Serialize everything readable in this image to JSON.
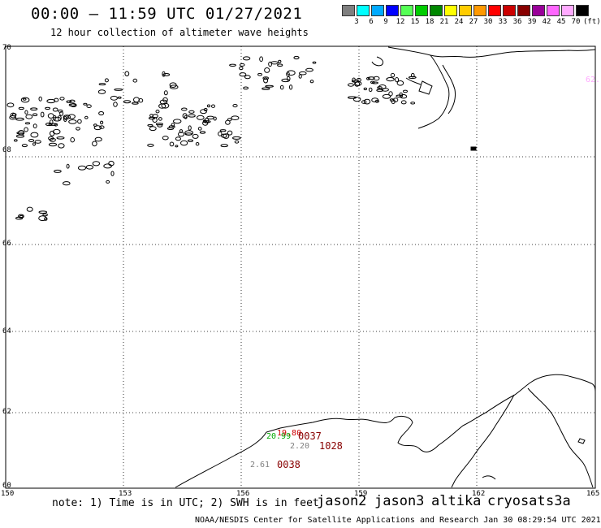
{
  "header": {
    "title": "00:00 – 11:59 UTC 01/27/2021",
    "subtitle": "12 hour collection of altimeter wave heights"
  },
  "legend": {
    "colors": [
      "#7f7f7f",
      "#00ffff",
      "#00aaff",
      "#0000ff",
      "#55ff55",
      "#00cc00",
      "#008800",
      "#ffff00",
      "#ffcc00",
      "#ff9900",
      "#ff0000",
      "#cc0000",
      "#880000",
      "#990099",
      "#ff66ff",
      "#ffaaff",
      "#000000"
    ],
    "labels": [
      "3",
      "6",
      "9",
      "12",
      "15",
      "18",
      "21",
      "24",
      "27",
      "30",
      "33",
      "36",
      "39",
      "42",
      "45",
      "70",
      "(ft)"
    ]
  },
  "axes": {
    "lat_ticks": [
      "70",
      "68",
      "66",
      "64",
      "62",
      "60"
    ],
    "lon_ticks": [
      "150",
      "153",
      "156",
      "159",
      "162",
      "165"
    ]
  },
  "observations": [
    {
      "text": "20.99",
      "color": "#00aa00"
    },
    {
      "text": "19.80",
      "color": "#cc0000"
    },
    {
      "text": "0037",
      "color": "#880000"
    },
    {
      "text": "2.20",
      "color": "#7f7f7f"
    },
    {
      "text": "1028",
      "color": "#880000"
    },
    {
      "text": "2.61",
      "color": "#7f7f7f"
    },
    {
      "text": "0038",
      "color": "#880000"
    },
    {
      "text": "62.",
      "color": "#ffaaff"
    }
  ],
  "footer": {
    "note": "note: 1) Time is in UTC; 2) SWH is in feet",
    "satellites": [
      {
        "name": "jason2",
        "color": "#0000cc"
      },
      {
        "name": "jason3",
        "color": "#008800"
      },
      {
        "name": "altika",
        "color": "#ff9900"
      },
      {
        "name": "cryosat",
        "color": "#cc0000"
      },
      {
        "name": "s3a",
        "color": "#880000"
      }
    ],
    "credit": "NOAA/NESDIS Center for Satellite Applications and Research   Jan 30 08:29:54 UTC 2021"
  }
}
